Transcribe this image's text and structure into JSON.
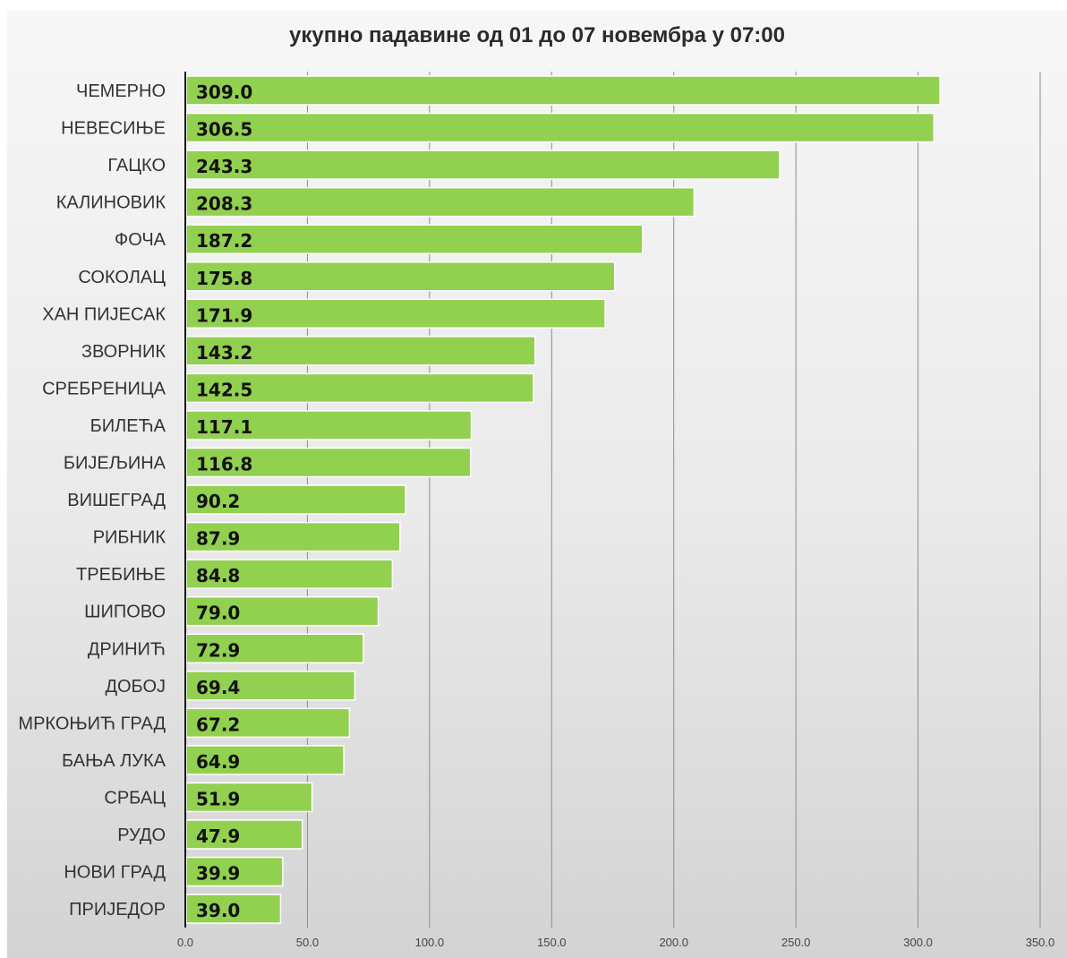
{
  "chart_data": {
    "type": "bar",
    "orientation": "horizontal",
    "title": "укупно падавине од 01 до 07 новембра у 07:00",
    "xlabel": "",
    "ylabel": "",
    "categories": [
      "ЧЕМЕРНО",
      "НЕВЕСИЊЕ",
      "ГАЦКО",
      "КАЛИНОВИК",
      "ФОЧА",
      "СОКОЛАЦ",
      "ХАН ПИЈЕСАК",
      "ЗВОРНИК",
      "СРЕБРЕНИЦА",
      "БИЛЕЋА",
      "БИЈЕЉИНА",
      "ВИШЕГРАД",
      "РИБНИК",
      "ТРЕБИЊЕ",
      "ШИПОВО",
      "ДРИНИЋ",
      "ДОБОЈ",
      "МРКОЊИЋ ГРАД",
      "БАЊА ЛУКА",
      "СРБАЦ",
      "РУДО",
      "НОВИ ГРАД",
      "ПРИЈЕДОР"
    ],
    "values": [
      309.0,
      306.5,
      243.3,
      208.3,
      187.2,
      175.8,
      171.9,
      143.2,
      142.5,
      117.1,
      116.8,
      90.2,
      87.9,
      84.8,
      79.0,
      72.9,
      69.4,
      67.2,
      64.9,
      51.9,
      47.9,
      39.9,
      39.0
    ],
    "value_labels": [
      "309.0",
      "306.5",
      "243.3",
      "208.3",
      "187.2",
      "175.8",
      "171.9",
      "143.2",
      "142.5",
      "117.1",
      "116.8",
      "90.2",
      "87.9",
      "84.8",
      "79.0",
      "72.9",
      "69.4",
      "67.2",
      "64.9",
      "51.9",
      "47.9",
      "39.9",
      "39.0"
    ],
    "xlim": [
      0,
      350
    ],
    "xticks": [
      0,
      50,
      100,
      150,
      200,
      250,
      300,
      350
    ],
    "xtick_labels": [
      "0.0",
      "50.0",
      "100.0",
      "150.0",
      "200.0",
      "250.0",
      "300.0",
      "350.0"
    ],
    "grid": true,
    "legend": "none",
    "colors": {
      "bar": "#92d050",
      "bar_border": "#ffffff",
      "gridline": "#8c8c8c",
      "axis": "#1a1a1a"
    }
  }
}
